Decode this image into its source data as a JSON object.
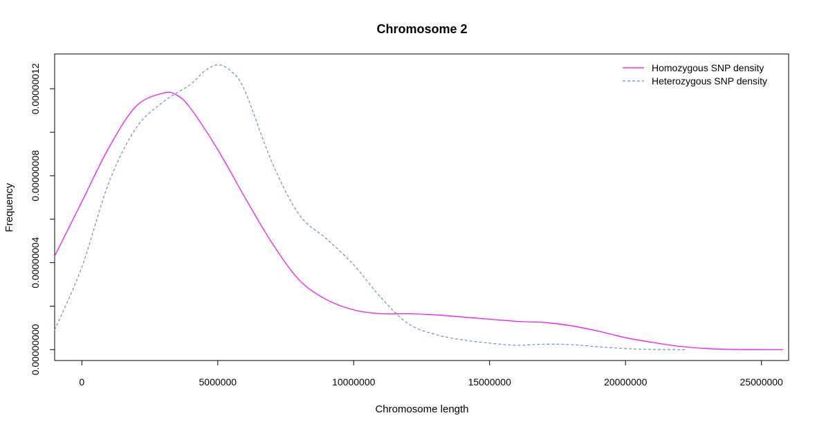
{
  "chart_data": {
    "type": "line",
    "title": "Chromosome 2",
    "xlabel": "Chromosome length",
    "ylabel": "Frequency",
    "xlim": [
      -1000000,
      26000000
    ],
    "ylim": [
      -5e-09,
      1.36e-07
    ],
    "xticks": [
      0,
      5000000,
      10000000,
      15000000,
      20000000,
      25000000
    ],
    "xtick_labels": [
      "0",
      "5000000",
      "10000000",
      "15000000",
      "20000000",
      "25000000"
    ],
    "yticks": [
      0,
      2e-08,
      4e-08,
      6e-08,
      8e-08,
      1e-07,
      1.2e-07
    ],
    "ytick_labels": [
      "0.00000000",
      "",
      "0.00000004",
      "",
      "0.00000008",
      "",
      "0.00000012"
    ],
    "legend_position": "top-right",
    "series": [
      {
        "name": "Homozygous SNP density",
        "color": "#ff00ff",
        "dash": "solid",
        "x": [
          -1000000,
          0,
          1000000,
          2000000,
          3000000,
          3500000,
          4000000,
          5000000,
          6000000,
          7000000,
          8000000,
          9000000,
          10000000,
          11000000,
          12000000,
          13000000,
          14000000,
          15000000,
          16000000,
          17000000,
          18000000,
          19000000,
          20000000,
          21000000,
          22000000,
          23000000,
          24000000,
          25000000,
          25800000
        ],
        "y": [
          4.3e-08,
          6.8e-08,
          9.3e-08,
          1.12e-07,
          1.18e-07,
          1.17e-07,
          1.11e-07,
          9.2e-08,
          7e-08,
          4.9e-08,
          3.2e-08,
          2.3e-08,
          1.83e-08,
          1.65e-08,
          1.65e-08,
          1.6e-08,
          1.5e-08,
          1.4e-08,
          1.3e-08,
          1.25e-08,
          1.1e-08,
          8.5e-09,
          5.5e-09,
          3.3e-09,
          1.5e-09,
          5e-10,
          1e-10,
          0,
          0
        ]
      },
      {
        "name": "Heterozygous SNP density",
        "color": "#6b8dd6",
        "dash": "dashed",
        "x": [
          -1000000,
          0,
          1000000,
          2000000,
          3000000,
          4000000,
          4500000,
          5000000,
          5500000,
          6000000,
          7000000,
          8000000,
          9000000,
          10000000,
          11000000,
          12000000,
          13000000,
          14000000,
          15000000,
          16000000,
          17000000,
          18000000,
          19000000,
          20000000,
          21000000,
          22000000,
          22200000
        ],
        "y": [
          9e-09,
          3.8e-08,
          7.7e-08,
          1.02e-07,
          1.14e-07,
          1.22e-07,
          1.28e-07,
          1.31e-07,
          1.28e-07,
          1.19e-07,
          8.6e-08,
          6.2e-08,
          5.1e-08,
          3.9e-08,
          2.4e-08,
          1.2e-08,
          7e-09,
          4.5e-09,
          3e-09,
          2e-09,
          2.5e-09,
          2.3e-09,
          1.3e-09,
          5e-10,
          1e-10,
          0,
          0
        ]
      }
    ]
  }
}
